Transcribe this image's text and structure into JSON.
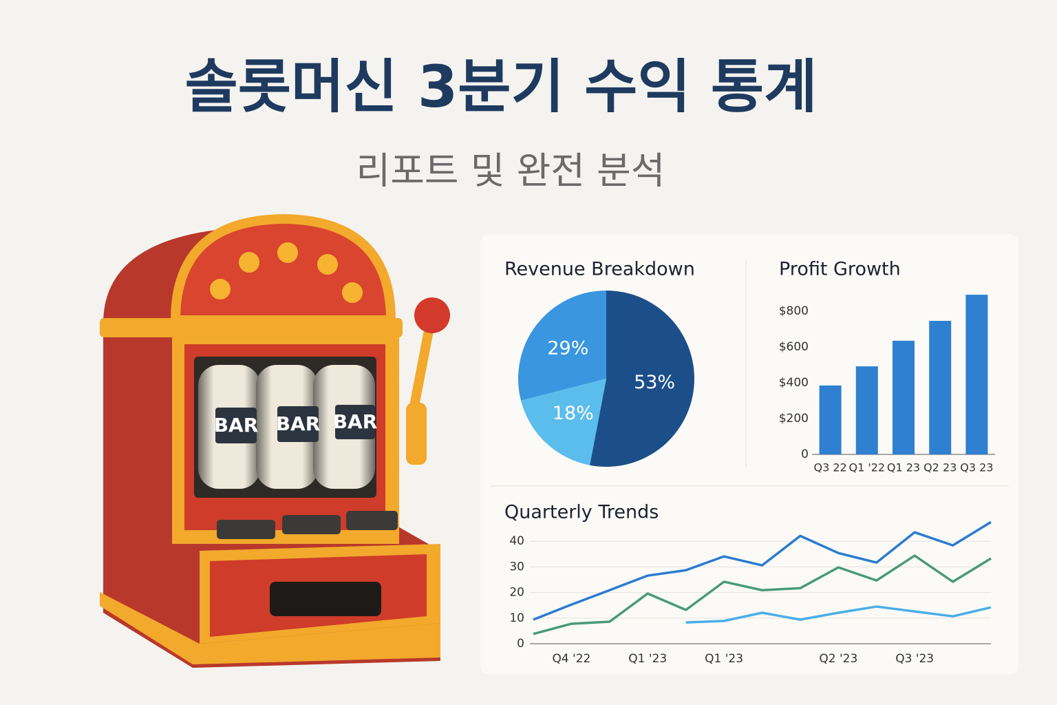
{
  "title": "솔롯머신 3분기 수익 통계",
  "subtitle": "리포트 및 완전 분석",
  "illustration": {
    "reels": [
      "BAR",
      "BAR",
      "BAR"
    ]
  },
  "chart_data": [
    {
      "type": "pie",
      "title": "Revenue Breakdown",
      "values": [
        53,
        18,
        29
      ],
      "value_labels": [
        "53%",
        "18%",
        "29%"
      ],
      "colors": [
        "#1c4f8a",
        "#5bbdec",
        "#3a96de"
      ]
    },
    {
      "type": "bar",
      "title": "Profit Growth",
      "categories": [
        "Q3 22",
        "Q1 '22",
        "Q1 23",
        "Q2 23",
        "Q3 23"
      ],
      "values": [
        385,
        492,
        635,
        746,
        892
      ],
      "color": "#2f80d0",
      "ylim": [
        0,
        900
      ],
      "yticks": [
        0,
        {
          "value": 200,
          "label": "$200"
        },
        {
          "value": 400,
          "label": "$400"
        },
        {
          "value": 600,
          "label": "$600"
        },
        {
          "value": 800,
          "label": "$800"
        }
      ]
    },
    {
      "type": "line",
      "title": "Quarterly Trends",
      "categories": [
        null,
        "Q4 '22",
        null,
        "Q1 '23",
        null,
        "Q1 '23",
        null,
        null,
        "Q2 '23",
        null,
        "Q3 '23",
        null,
        null
      ],
      "series": [
        {
          "color": "#2a7bd0",
          "values": [
            9.4,
            15.3,
            20.9,
            26.6,
            28.7,
            34.1,
            30.6,
            42.1,
            35.4,
            31.7,
            43.5,
            38.4,
            47.5
          ]
        },
        {
          "color": "#4a9a78",
          "values": [
            3.8,
            7.8,
            8.6,
            19.6,
            13.2,
            24.2,
            20.9,
            21.7,
            29.8,
            24.7,
            34.4,
            24.2,
            33.3
          ]
        },
        {
          "color": "#4aaee6",
          "values": [
            null,
            null,
            null,
            null,
            8.3,
            8.9,
            12.1,
            9.4,
            12.1,
            14.5,
            12.6,
            10.7,
            14.2
          ]
        }
      ],
      "ylim": [
        0,
        50
      ],
      "yticks": [
        0,
        10,
        20,
        30,
        40
      ],
      "grid": true
    }
  ]
}
